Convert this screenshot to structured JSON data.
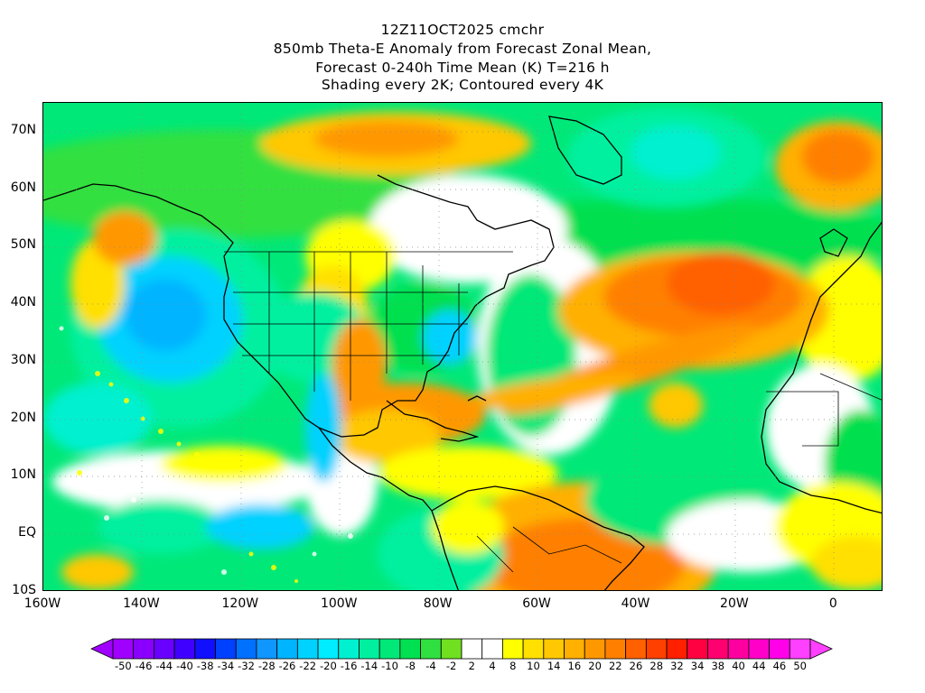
{
  "title": {
    "line1": "12Z11OCT2025 cmchr",
    "line2": "850mb Theta-E Anomaly from Forecast Zonal Mean,",
    "line3": "Forecast 0-240h Time Mean (K) T=216 h",
    "line4": "Shading every 2K; Contoured every 4K"
  },
  "map": {
    "lat_labels": [
      "70N",
      "60N",
      "50N",
      "40N",
      "30N",
      "20N",
      "10N",
      "EQ",
      "10S"
    ],
    "lon_labels": [
      "160W",
      "140W",
      "120W",
      "100W",
      "80W",
      "60W",
      "40W",
      "20W",
      "0"
    ],
    "extent": {
      "lon_min": -160,
      "lon_max": 10,
      "lat_min": -10,
      "lat_max": 75
    }
  },
  "colorbar": {
    "labels": [
      "-50",
      "-46",
      "-44",
      "-40",
      "-38",
      "-34",
      "-32",
      "-28",
      "-26",
      "-22",
      "-20",
      "-16",
      "-14",
      "-10",
      "-8",
      "-4",
      "-2",
      "2",
      "4",
      "8",
      "10",
      "14",
      "16",
      "20",
      "22",
      "26",
      "28",
      "32",
      "34",
      "38",
      "40",
      "44",
      "46",
      "50"
    ],
    "colors": [
      "#a000ff",
      "#8a00ff",
      "#6a00ff",
      "#4000ff",
      "#1010ff",
      "#0040ff",
      "#0070ff",
      "#1096ff",
      "#00b4ff",
      "#00d2ff",
      "#00ecff",
      "#00f0d0",
      "#00f0a0",
      "#00e878",
      "#00e050",
      "#30e040",
      "#70e020",
      "#ffffff",
      "#ffffff",
      "#ffff00",
      "#ffe000",
      "#ffc800",
      "#ffb000",
      "#ff9800",
      "#ff8000",
      "#ff6000",
      "#ff4000",
      "#ff2000",
      "#ff0040",
      "#ff0070",
      "#ff00a0",
      "#ff00c8",
      "#ff00e8",
      "#ff40ff"
    ]
  }
}
